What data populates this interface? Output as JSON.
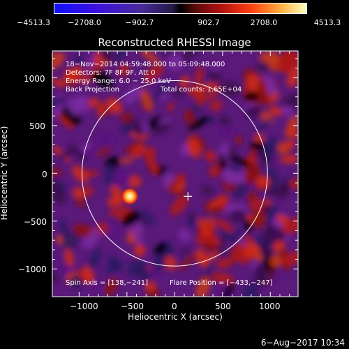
{
  "colorbar": {
    "labels": [
      "−4513.3",
      "−2708.0",
      "−902.7",
      "902.7",
      "2708.0",
      "4513.3"
    ],
    "range": [
      -4513.3,
      4513.3
    ]
  },
  "chart_data": {
    "type": "heatmap",
    "title": "Reconstructed RHESSI Image",
    "xlabel": "Heliocentric X (arcsec)",
    "ylabel": "Heliocentric Y (arcsec)",
    "xlim": [
      -1280,
      1290
    ],
    "ylim": [
      -1290,
      1280
    ],
    "xticks": [
      "−1000",
      "−500",
      "0",
      "500",
      "1000"
    ],
    "yticks": [
      "1000",
      "500",
      "0",
      "−500",
      "−1000"
    ],
    "xtick_values": [
      -1000,
      -500,
      0,
      500,
      1000
    ],
    "ytick_values": [
      1000,
      500,
      0,
      -500,
      -1000
    ],
    "colorbar_range": [
      -4513.3,
      4513.3
    ],
    "bright_source": {
      "x": -470,
      "y": -240,
      "value": 4513.3
    },
    "crosshair": {
      "x": 138,
      "y": -241
    },
    "solar_limb_radius": 970
  },
  "annotations": {
    "time_range": "18−Nov−2014 04:59:48.000 to 05:09:48.000",
    "detectors": "Detectors: 7F 8F 9F, Att 0",
    "energy": "Energy Range: 6.0 − 25.0 keV",
    "method": "Back Projection",
    "counts": "Total counts: 1.65E+04",
    "spin_axis": "Spin Axis = [138,−241]",
    "flare_position": "Flare Position = [−433,−247]"
  },
  "timestamp": "6−Aug−2017 10:34",
  "colors": {
    "limb": "#ffffff",
    "axis": "#ffffff",
    "background": "#000000"
  }
}
